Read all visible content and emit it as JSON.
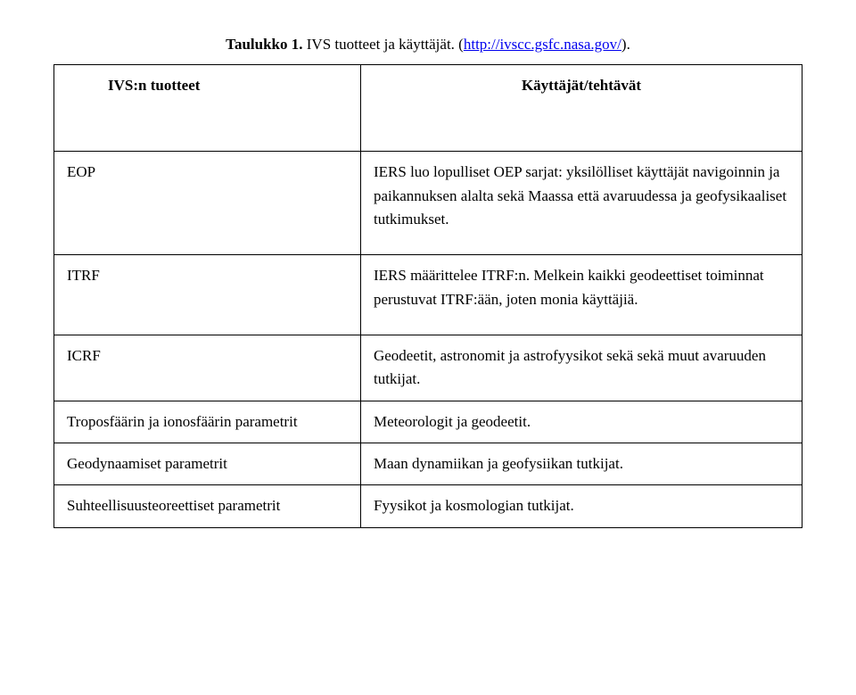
{
  "caption": {
    "label": "Taulukko 1.",
    "text": " IVS tuotteet ja käyttäjät. (",
    "link": "http://ivscc.gsfc.nasa.gov/",
    "after": ")."
  },
  "header": {
    "left": "IVS:n tuotteet",
    "right": "Käyttäjät/tehtävät"
  },
  "rows": [
    {
      "left": "EOP",
      "right": "IERS luo lopulliset OEP sarjat: yksilölliset käyttäjät navigoinnin ja paikannuksen alalta sekä Maassa että avaruudessa ja geofysikaaliset tutkimukset."
    },
    {
      "left": "ITRF",
      "right": "IERS määrittelee ITRF:n. Melkein kaikki geodeettiset toiminnat perustuvat ITRF:ään, joten monia käyttäjiä."
    },
    {
      "left": "ICRF",
      "right": "Geodeetit, astronomit ja astrofyysikot sekä sekä muut avaruuden tutkijat."
    },
    {
      "left": "Troposfäärin ja ionosfäärin parametrit",
      "right": "Meteorologit ja geodeetit."
    },
    {
      "left": "Geodynaamiset parametrit",
      "right": "Maan dynamiikan ja geofysiikan tutkijat."
    },
    {
      "left": "Suhteellisuusteoreettiset parametrit",
      "right": "Fyysikot ja kosmologian tutkijat."
    }
  ]
}
